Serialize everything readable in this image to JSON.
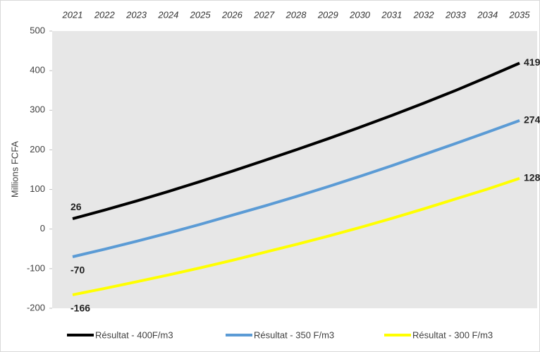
{
  "chart_data": {
    "type": "line",
    "y_axis_label": "Millions FCFA",
    "categories": [
      "2021",
      "2022",
      "2023",
      "2024",
      "2025",
      "2026",
      "2027",
      "2028",
      "2029",
      "2030",
      "2031",
      "2032",
      "2033",
      "2034",
      "2035"
    ],
    "series": [
      {
        "name": "Résultat - 400F/m3",
        "color": "#000000",
        "values": [
          26,
          48,
          71,
          95,
          120,
          146,
          173,
          200,
          228,
          257,
          287,
          318,
          350,
          384,
          419
        ]
      },
      {
        "name": "Résultat - 350 F/m3",
        "color": "#5b9bd5",
        "values": [
          -70,
          -51,
          -31,
          -10,
          12,
          35,
          58,
          82,
          107,
          133,
          160,
          188,
          216,
          245,
          274
        ]
      },
      {
        "name": "Résultat - 300 F/m3",
        "color": "#ffff00",
        "values": [
          -166,
          -150,
          -133,
          -116,
          -98,
          -79,
          -59,
          -39,
          -18,
          4,
          27,
          51,
          76,
          101,
          128
        ]
      }
    ],
    "ylim": [
      -200,
      500
    ],
    "yticks": [
      -200,
      -100,
      0,
      100,
      200,
      300,
      400,
      500
    ]
  }
}
